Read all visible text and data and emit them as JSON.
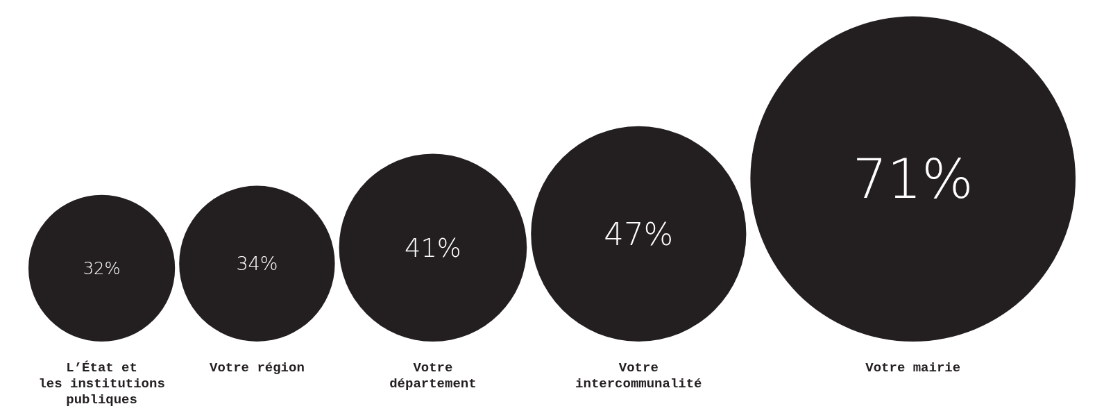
{
  "chart_data": {
    "type": "other",
    "categories": [
      "L’État et\nles institutions\npubliques",
      "Votre région",
      "Votre\ndépartement",
      "Votre\nintercommunalité",
      "Votre mairie"
    ],
    "values": [
      32,
      34,
      41,
      47,
      71
    ],
    "color": "#231f20",
    "value_labels": [
      "32%",
      "34%",
      "41%",
      "47%",
      "71%"
    ]
  }
}
